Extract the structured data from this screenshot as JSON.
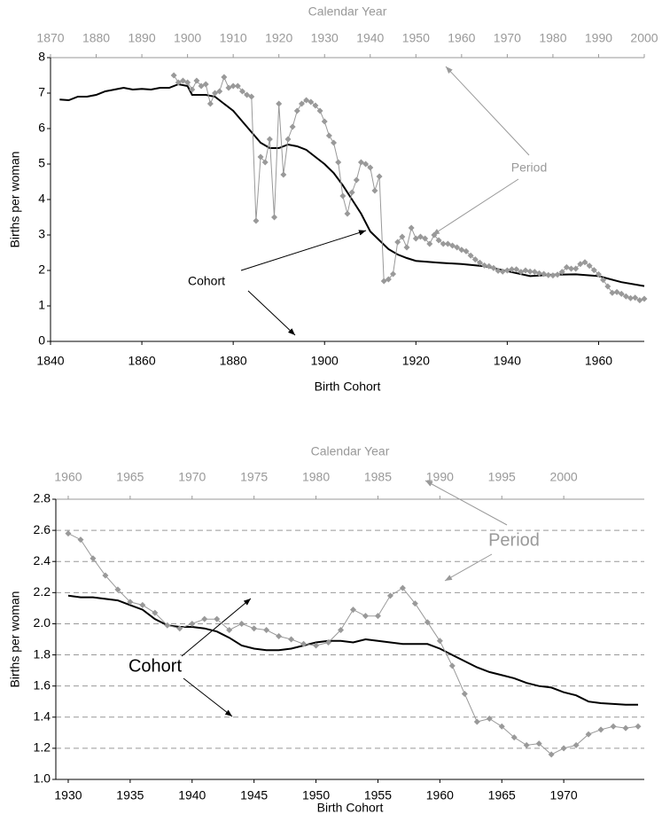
{
  "chart_data": [
    {
      "type": "line",
      "x_label": "Birth Cohort",
      "x2_label": "Calendar Year",
      "y_label": "Births per woman",
      "xlim": [
        1840,
        1970
      ],
      "x2lim": [
        1870,
        2000
      ],
      "ylim": [
        0,
        8
      ],
      "xticks": [
        1840,
        1860,
        1880,
        1900,
        1920,
        1940,
        1960
      ],
      "x2ticks": [
        1870,
        1880,
        1890,
        1900,
        1910,
        1920,
        1930,
        1940,
        1950,
        1960,
        1970,
        1980,
        1990,
        2000
      ],
      "yticks": [
        0,
        1,
        2,
        3,
        4,
        5,
        6,
        7,
        8
      ],
      "grid": false,
      "series": [
        {
          "name": "Cohort",
          "color": "#000000",
          "x": [
            1842,
            1844,
            1846,
            1848,
            1850,
            1852,
            1854,
            1856,
            1858,
            1860,
            1862,
            1864,
            1866,
            1868,
            1870,
            1871,
            1874,
            1876,
            1878,
            1880,
            1882,
            1884,
            1886,
            1888,
            1890,
            1892,
            1894,
            1896,
            1898,
            1900,
            1902,
            1904,
            1906,
            1908,
            1910,
            1912,
            1914,
            1916,
            1918,
            1920,
            1925,
            1930,
            1935,
            1940,
            1945,
            1950,
            1955,
            1960,
            1965,
            1970
          ],
          "values": [
            6.82,
            6.8,
            6.9,
            6.9,
            6.95,
            7.05,
            7.1,
            7.15,
            7.1,
            7.12,
            7.1,
            7.15,
            7.15,
            7.25,
            7.2,
            6.95,
            6.95,
            6.9,
            6.7,
            6.5,
            6.2,
            5.9,
            5.6,
            5.45,
            5.45,
            5.55,
            5.5,
            5.4,
            5.2,
            5.0,
            4.75,
            4.4,
            4.0,
            3.6,
            3.1,
            2.85,
            2.6,
            2.45,
            2.35,
            2.27,
            2.22,
            2.18,
            2.12,
            1.98,
            1.84,
            1.88,
            1.89,
            1.84,
            1.67,
            1.56
          ]
        },
        {
          "name": "Period",
          "color": "#999999",
          "axis": "x2",
          "marker": "diamond",
          "x": [
            1897,
            1898,
            1899,
            1900,
            1901,
            1902,
            1903,
            1904,
            1905,
            1906,
            1907,
            1908,
            1909,
            1910,
            1911,
            1912,
            1913,
            1914,
            1915,
            1916,
            1917,
            1918,
            1919,
            1920,
            1921,
            1922,
            1923,
            1924,
            1925,
            1926,
            1927,
            1928,
            1929,
            1930,
            1931,
            1932,
            1933,
            1934,
            1935,
            1936,
            1937,
            1938,
            1939,
            1940,
            1941,
            1942,
            1943,
            1944,
            1945,
            1946,
            1947,
            1948,
            1949,
            1950,
            1951,
            1952,
            1953,
            1954,
            1955,
            1956,
            1957,
            1958,
            1959,
            1960,
            1961,
            1962,
            1963,
            1964,
            1965,
            1966,
            1967,
            1968,
            1969,
            1970,
            1971,
            1972,
            1973,
            1974,
            1975,
            1976,
            1977,
            1978,
            1979,
            1980,
            1981,
            1982,
            1983,
            1984,
            1985,
            1986,
            1987,
            1988,
            1989,
            1990,
            1991,
            1992,
            1993,
            1994,
            1995,
            1996,
            1997,
            1998,
            1999,
            2000
          ],
          "values": [
            7.5,
            7.3,
            7.35,
            7.3,
            7.1,
            7.35,
            7.2,
            7.25,
            6.7,
            7.0,
            7.05,
            7.45,
            7.15,
            7.2,
            7.2,
            7.05,
            6.95,
            6.9,
            3.4,
            5.2,
            5.05,
            5.7,
            3.5,
            6.7,
            4.7,
            5.7,
            6.05,
            6.5,
            6.7,
            6.8,
            6.75,
            6.65,
            6.5,
            6.2,
            5.8,
            5.6,
            5.05,
            4.1,
            3.6,
            4.2,
            4.55,
            5.05,
            5.0,
            4.9,
            4.25,
            4.65,
            1.7,
            1.75,
            1.9,
            2.8,
            2.95,
            2.65,
            3.2,
            2.9,
            2.95,
            2.9,
            2.75,
            3.0,
            2.85,
            2.75,
            2.75,
            2.7,
            2.65,
            2.58,
            2.54,
            2.42,
            2.31,
            2.22,
            2.14,
            2.12,
            2.07,
            1.99,
            1.97,
            2.0,
            2.03,
            2.03,
            1.96,
            2.0,
            1.97,
            1.96,
            1.92,
            1.9,
            1.87,
            1.86,
            1.88,
            1.96,
            2.09,
            2.05,
            2.05,
            2.18,
            2.23,
            2.13,
            2.01,
            1.89,
            1.73,
            1.55,
            1.37,
            1.39,
            1.34,
            1.27,
            1.22,
            1.23,
            1.16,
            1.2
          ]
        }
      ]
    },
    {
      "type": "line",
      "x_label": "Birth Cohort",
      "x2_label": "Calendar Year",
      "y_label": "Births per woman",
      "xlim": [
        1929,
        1976.5
      ],
      "x2lim": [
        1959,
        2006.5
      ],
      "ylim": [
        1.0,
        2.8
      ],
      "xticks": [
        1930,
        1935,
        1940,
        1945,
        1950,
        1955,
        1960,
        1965,
        1970
      ],
      "x2ticks": [
        1960,
        1965,
        1970,
        1975,
        1980,
        1985,
        1990,
        1995,
        2000
      ],
      "yticks": [
        {
          "value": 1.0,
          "label": "1.0"
        },
        1.2,
        1.4,
        1.6,
        1.8,
        {
          "value": 2.0,
          "label": "2.0"
        },
        2.2,
        2.4,
        2.6,
        2.8
      ],
      "grid": true,
      "series": [
        {
          "name": "Cohort",
          "color": "#000000",
          "x": [
            1930,
            1931,
            1932,
            1933,
            1934,
            1935,
            1936,
            1937,
            1938,
            1939,
            1940,
            1941,
            1942,
            1943,
            1944,
            1945,
            1946,
            1947,
            1948,
            1949,
            1950,
            1951,
            1952,
            1953,
            1954,
            1955,
            1956,
            1957,
            1958,
            1959,
            1960,
            1961,
            1962,
            1963,
            1964,
            1965,
            1966,
            1967,
            1968,
            1969,
            1970,
            1971,
            1972,
            1973,
            1974,
            1975,
            1976
          ],
          "values": [
            2.18,
            2.17,
            2.17,
            2.16,
            2.15,
            2.12,
            2.09,
            2.03,
            1.99,
            1.98,
            1.98,
            1.97,
            1.95,
            1.91,
            1.86,
            1.84,
            1.83,
            1.83,
            1.84,
            1.86,
            1.88,
            1.89,
            1.89,
            1.88,
            1.9,
            1.89,
            1.88,
            1.87,
            1.87,
            1.87,
            1.84,
            1.8,
            1.76,
            1.72,
            1.69,
            1.67,
            1.65,
            1.62,
            1.6,
            1.59,
            1.56,
            1.54,
            1.5,
            1.49,
            1.485,
            1.48,
            1.48
          ]
        },
        {
          "name": "Period",
          "color": "#999999",
          "axis": "x2",
          "marker": "diamond",
          "x": [
            1960,
            1961,
            1962,
            1963,
            1964,
            1965,
            1966,
            1967,
            1968,
            1969,
            1970,
            1971,
            1972,
            1973,
            1974,
            1975,
            1976,
            1977,
            1978,
            1979,
            1980,
            1981,
            1982,
            1983,
            1984,
            1985,
            1986,
            1987,
            1988,
            1989,
            1990,
            1991,
            1992,
            1993,
            1994,
            1995,
            1996,
            1997,
            1998,
            1999,
            2000,
            2001,
            2002,
            2003,
            2004,
            2005,
            2006
          ],
          "values": [
            2.58,
            2.54,
            2.42,
            2.31,
            2.22,
            2.14,
            2.12,
            2.07,
            1.99,
            1.97,
            2.0,
            2.03,
            2.03,
            1.96,
            2.0,
            1.97,
            1.96,
            1.92,
            1.9,
            1.87,
            1.86,
            1.88,
            1.96,
            2.09,
            2.05,
            2.05,
            2.18,
            2.23,
            2.13,
            2.01,
            1.89,
            1.73,
            1.55,
            1.37,
            1.39,
            1.34,
            1.27,
            1.22,
            1.23,
            1.16,
            1.2,
            1.22,
            1.29,
            1.32,
            1.34,
            1.33,
            1.34
          ]
        }
      ]
    }
  ]
}
